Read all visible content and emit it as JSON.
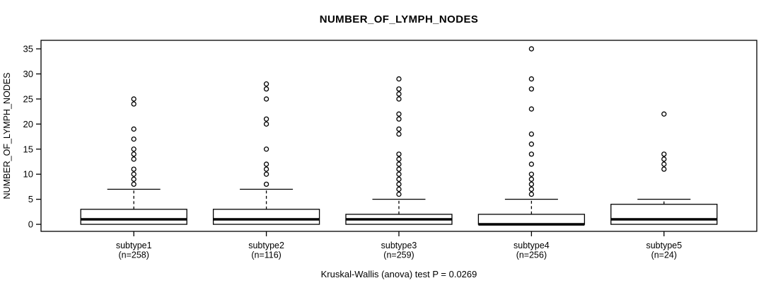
{
  "chart_data": {
    "type": "boxplot",
    "title": "NUMBER_OF_LYMPH_NODES",
    "xlabel": "",
    "ylabel": "NUMBER_OF_LYMPH_NODES",
    "annotation": "Kruskal-Wallis (anova) test P = 0.0269",
    "ylim": [
      -1.4,
      36.7
    ],
    "yticks": [
      0,
      5,
      10,
      15,
      20,
      25,
      30,
      35
    ],
    "grid": false,
    "legend": null,
    "categories": [
      "subtype1",
      "subtype2",
      "subtype3",
      "subtype4",
      "subtype5"
    ],
    "groups": [
      {
        "label": "subtype1",
        "sub_label": "(n=258)",
        "n": 258,
        "whisker_low": 0,
        "q1": 0,
        "median": 1,
        "q3": 3,
        "whisker_high": 7,
        "outliers": [
          8,
          9,
          10,
          11,
          13,
          14,
          15,
          17,
          19,
          24,
          25
        ]
      },
      {
        "label": "subtype2",
        "sub_label": "(n=116)",
        "n": 116,
        "whisker_low": 0,
        "q1": 0,
        "median": 1,
        "q3": 3,
        "whisker_high": 7,
        "outliers": [
          8,
          10,
          11,
          12,
          15,
          20,
          21,
          25,
          27,
          28
        ]
      },
      {
        "label": "subtype3",
        "sub_label": "(n=259)",
        "n": 259,
        "whisker_low": 0,
        "q1": 0,
        "median": 1,
        "q3": 2,
        "whisker_high": 5,
        "outliers": [
          6,
          7,
          8,
          9,
          10,
          11,
          12,
          13,
          14,
          18,
          19,
          21,
          22,
          25,
          26,
          27,
          29
        ]
      },
      {
        "label": "subtype4",
        "sub_label": "(n=256)",
        "n": 256,
        "whisker_low": 0,
        "q1": 0,
        "median": 0,
        "q3": 2,
        "whisker_high": 5,
        "outliers": [
          6,
          7,
          8,
          9,
          10,
          12,
          14,
          16,
          18,
          23,
          27,
          29,
          35
        ]
      },
      {
        "label": "subtype5",
        "sub_label": "(n=24)",
        "n": 24,
        "whisker_low": 0,
        "q1": 0,
        "median": 1,
        "q3": 4,
        "whisker_high": 5,
        "outliers": [
          11,
          12,
          13,
          14,
          22
        ]
      }
    ]
  }
}
